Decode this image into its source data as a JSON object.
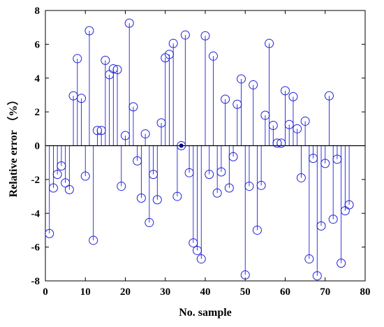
{
  "chart_data": {
    "type": "scatter",
    "style": "stem",
    "xlabel": "No. sample",
    "ylabel": "Relative error （%）",
    "xlim": [
      0,
      80
    ],
    "ylim": [
      -8,
      8
    ],
    "xticks": [
      0,
      10,
      20,
      30,
      40,
      50,
      60,
      70,
      80
    ],
    "yticks": [
      -8,
      -6,
      -4,
      -2,
      0,
      2,
      4,
      6,
      8
    ],
    "grid": false,
    "colors": {
      "series": "#1f1fd9",
      "axis": "#000000",
      "highlight": "#000080"
    },
    "highlight_point": {
      "x": 34,
      "y": 0
    },
    "series": [
      {
        "x": [
          1,
          2,
          3,
          4,
          5,
          6,
          7,
          8,
          9,
          10,
          11,
          12,
          13,
          14,
          15,
          16,
          17,
          18,
          19,
          20,
          21,
          22,
          23,
          24,
          25,
          26,
          27,
          28,
          29,
          30,
          31,
          32,
          33,
          34,
          35,
          36,
          37,
          38,
          39,
          40,
          41,
          42,
          43,
          44,
          45,
          46,
          47,
          48,
          49,
          50,
          51,
          52,
          53,
          54,
          55,
          56,
          57,
          58,
          59,
          60,
          61,
          62,
          63,
          64,
          65,
          66,
          67,
          68,
          69,
          70,
          71,
          72,
          73,
          74,
          75,
          76
        ],
        "y": [
          -5.2,
          -2.5,
          -1.7,
          -1.2,
          -2.2,
          -2.6,
          2.95,
          5.15,
          2.8,
          -1.8,
          6.8,
          -5.6,
          0.9,
          0.9,
          5.05,
          4.2,
          4.55,
          4.5,
          -2.4,
          0.6,
          7.25,
          2.3,
          -0.9,
          -3.1,
          0.7,
          -4.55,
          -1.7,
          -3.2,
          1.35,
          5.2,
          5.4,
          6.05,
          -3.0,
          0.0,
          6.55,
          -1.6,
          -5.75,
          -6.2,
          -6.7,
          6.5,
          -1.7,
          5.3,
          -2.8,
          -1.55,
          2.75,
          -2.5,
          -0.65,
          2.45,
          3.95,
          -7.65,
          -2.4,
          3.6,
          -5.0,
          -2.35,
          1.8,
          6.05,
          1.2,
          0.15,
          0.15,
          3.25,
          1.25,
          2.9,
          1.0,
          -1.9,
          1.45,
          -6.7,
          -0.75,
          -7.7,
          -4.75,
          -1.05,
          2.95,
          -4.35,
          -0.8,
          -6.95,
          -3.85,
          -3.5
        ]
      }
    ]
  }
}
